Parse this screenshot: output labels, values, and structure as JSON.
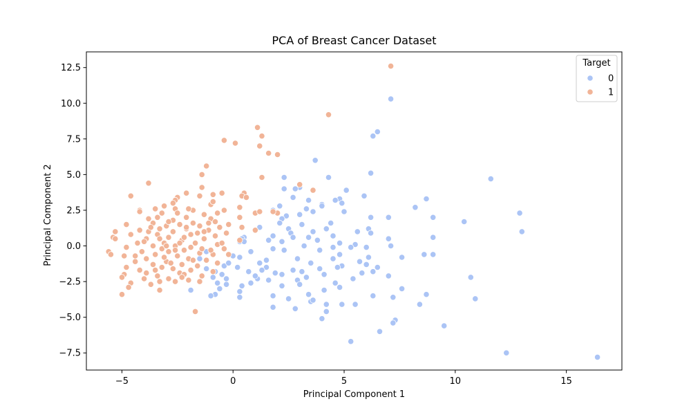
{
  "chart_data": {
    "type": "scatter",
    "title": "PCA of Breast Cancer Dataset",
    "xlabel": "Principal Component 1",
    "ylabel": "Principal Component 2",
    "xlim": [
      -6.6,
      17.5
    ],
    "ylim": [
      -8.7,
      13.6
    ],
    "xticks": [
      -5,
      0,
      5,
      10,
      15
    ],
    "xtick_labels": [
      "−5",
      "0",
      "5",
      "10",
      "15"
    ],
    "yticks": [
      -7.5,
      -5.0,
      -2.5,
      0.0,
      2.5,
      5.0,
      7.5,
      10.0,
      12.5
    ],
    "ytick_labels": [
      "−7.5",
      "−5.0",
      "−2.5",
      "0.0",
      "2.5",
      "5.0",
      "7.5",
      "10.0",
      "12.5"
    ],
    "grid": false,
    "legend": {
      "title": "Target",
      "placement": "top-right",
      "entries": [
        "0",
        "1"
      ]
    },
    "series": [
      {
        "name": "0",
        "color": "#abc4f5",
        "points": [
          [
            7.1,
            10.3
          ],
          [
            6.5,
            8.0
          ],
          [
            6.3,
            7.7
          ],
          [
            3.7,
            6.0
          ],
          [
            6.2,
            5.1
          ],
          [
            11.6,
            4.7
          ],
          [
            2.3,
            4.8
          ],
          [
            5.9,
            3.5
          ],
          [
            4.3,
            4.8
          ],
          [
            2.3,
            4.0
          ],
          [
            3.0,
            4.1
          ],
          [
            2.8,
            4.0
          ],
          [
            5.1,
            3.9
          ],
          [
            2.7,
            3.4
          ],
          [
            4.8,
            3.3
          ],
          [
            3.4,
            3.2
          ],
          [
            8.7,
            3.3
          ],
          [
            4.6,
            3.2
          ],
          [
            4.9,
            3.0
          ],
          [
            4.0,
            2.9
          ],
          [
            4.0,
            2.8
          ],
          [
            8.2,
            2.7
          ],
          [
            2.1,
            2.8
          ],
          [
            3.3,
            2.6
          ],
          [
            5.0,
            2.4
          ],
          [
            1.8,
            2.5
          ],
          [
            3.6,
            2.4
          ],
          [
            12.9,
            2.3
          ],
          [
            9.0,
            2.0
          ],
          [
            7.0,
            2.0
          ],
          [
            6.2,
            2.0
          ],
          [
            3.0,
            2.2
          ],
          [
            2.4,
            2.1
          ],
          [
            2.2,
            1.9
          ],
          [
            10.4,
            1.7
          ],
          [
            4.4,
            1.6
          ],
          [
            3.1,
            1.5
          ],
          [
            2.1,
            1.6
          ],
          [
            1.2,
            1.3
          ],
          [
            4.2,
            1.2
          ],
          [
            2.5,
            1.2
          ],
          [
            6.1,
            1.2
          ],
          [
            13.0,
            1.0
          ],
          [
            5.6,
            1.0
          ],
          [
            3.6,
            1.0
          ],
          [
            1.0,
            1.1
          ],
          [
            2.6,
            0.9
          ],
          [
            6.2,
            0.9
          ],
          [
            1.8,
            0.7
          ],
          [
            4.5,
            0.7
          ],
          [
            3.4,
            0.6
          ],
          [
            7.0,
            0.5
          ],
          [
            0.5,
            0.6
          ],
          [
            9.0,
            0.6
          ],
          [
            2.7,
            0.6
          ],
          [
            1.6,
            0.4
          ],
          [
            3.8,
            0.4
          ],
          [
            0.4,
            0.5
          ],
          [
            2.2,
            0.3
          ],
          [
            4.8,
            0.2
          ],
          [
            0.3,
            0.3
          ],
          [
            5.5,
            0.1
          ],
          [
            7.1,
            0.0
          ],
          [
            3.2,
            0.0
          ],
          [
            4.5,
            -0.1
          ],
          [
            1.8,
            -0.2
          ],
          [
            5.3,
            -0.1
          ],
          [
            6.0,
            -0.1
          ],
          [
            2.3,
            -0.3
          ],
          [
            3.9,
            -0.3
          ],
          [
            9.0,
            -0.6
          ],
          [
            8.6,
            -0.6
          ],
          [
            4.8,
            -0.6
          ],
          [
            7.6,
            -0.8
          ],
          [
            6.1,
            -0.8
          ],
          [
            0.3,
            -0.8
          ],
          [
            4.5,
            -0.9
          ],
          [
            2.9,
            -0.9
          ],
          [
            5.7,
            -1.1
          ],
          [
            1.5,
            -1.0
          ],
          [
            3.5,
            -1.2
          ],
          [
            1.2,
            -1.2
          ],
          [
            6.0,
            -1.3
          ],
          [
            4.9,
            -1.4
          ],
          [
            6.5,
            -1.5
          ],
          [
            4.7,
            -1.5
          ],
          [
            1.5,
            -1.5
          ],
          [
            0.2,
            -1.5
          ],
          [
            3.9,
            -1.6
          ],
          [
            1.3,
            -1.7
          ],
          [
            2.7,
            -1.7
          ],
          [
            6.3,
            -1.8
          ],
          [
            3.1,
            -1.8
          ],
          [
            0.7,
            -1.8
          ],
          [
            1.9,
            -1.9
          ],
          [
            5.8,
            -1.9
          ],
          [
            4.1,
            -2.0
          ],
          [
            2.2,
            -2.0
          ],
          [
            7.0,
            -2.1
          ],
          [
            3.3,
            -2.2
          ],
          [
            1.1,
            -2.3
          ],
          [
            5.4,
            -2.3
          ],
          [
            10.7,
            -2.2
          ],
          [
            2.9,
            -2.4
          ],
          [
            1.6,
            -2.4
          ],
          [
            4.6,
            -2.6
          ],
          [
            0.8,
            -2.6
          ],
          [
            3.0,
            -2.7
          ],
          [
            -0.3,
            -2.7
          ],
          [
            4.8,
            -2.9
          ],
          [
            0.4,
            -2.8
          ],
          [
            2.2,
            -2.8
          ],
          [
            7.6,
            -3.0
          ],
          [
            -1.9,
            -3.1
          ],
          [
            4.1,
            -3.1
          ],
          [
            0.3,
            -3.2
          ],
          [
            3.4,
            -3.4
          ],
          [
            8.7,
            -3.4
          ],
          [
            -0.8,
            -3.4
          ],
          [
            1.8,
            -3.5
          ],
          [
            7.2,
            -3.6
          ],
          [
            0.3,
            -3.6
          ],
          [
            2.5,
            -3.7
          ],
          [
            6.3,
            -3.5
          ],
          [
            10.9,
            -3.7
          ],
          [
            3.5,
            -3.9
          ],
          [
            4.9,
            -4.1
          ],
          [
            3.6,
            -3.8
          ],
          [
            8.4,
            -4.1
          ],
          [
            5.5,
            -4.1
          ],
          [
            4.2,
            -4.1
          ],
          [
            2.8,
            -4.4
          ],
          [
            1.8,
            -4.3
          ],
          [
            4.2,
            -4.6
          ],
          [
            4.0,
            -5.1
          ],
          [
            7.3,
            -5.2
          ],
          [
            7.2,
            -5.4
          ],
          [
            9.5,
            -5.6
          ],
          [
            6.6,
            -6.0
          ],
          [
            5.3,
            -6.7
          ],
          [
            12.3,
            -7.5
          ],
          [
            16.4,
            -7.8
          ],
          [
            -1.5,
            -0.9
          ],
          [
            -1.2,
            -1.6
          ],
          [
            -0.9,
            -2.2
          ],
          [
            -0.5,
            -2.0
          ],
          [
            -0.7,
            -2.6
          ],
          [
            -0.4,
            -1.4
          ],
          [
            -0.8,
            -1.8
          ],
          [
            0.0,
            -0.7
          ],
          [
            0.5,
            0.3
          ],
          [
            0.8,
            -0.4
          ],
          [
            1.0,
            -2.1
          ],
          [
            -0.2,
            -1.2
          ],
          [
            -1.0,
            -3.5
          ],
          [
            -0.6,
            -3.0
          ],
          [
            -0.3,
            -2.3
          ],
          [
            -1.2,
            -0.4
          ]
        ]
      },
      {
        "name": "1",
        "color": "#f1b497",
        "points": [
          [
            7.1,
            12.6
          ],
          [
            4.3,
            9.2
          ],
          [
            1.1,
            8.3
          ],
          [
            1.3,
            7.7
          ],
          [
            -0.4,
            7.4
          ],
          [
            0.1,
            7.2
          ],
          [
            1.2,
            7.0
          ],
          [
            1.6,
            6.5
          ],
          [
            2.0,
            6.4
          ],
          [
            -1.2,
            5.6
          ],
          [
            -1.4,
            5.0
          ],
          [
            1.3,
            4.8
          ],
          [
            0.5,
            3.7
          ],
          [
            -3.8,
            4.4
          ],
          [
            -1.4,
            4.1
          ],
          [
            -4.6,
            3.5
          ],
          [
            -0.9,
            3.6
          ],
          [
            -0.5,
            3.7
          ],
          [
            3.0,
            4.3
          ],
          [
            0.4,
            3.5
          ],
          [
            0.6,
            3.4
          ],
          [
            -1.5,
            3.5
          ],
          [
            -2.5,
            3.4
          ],
          [
            3.6,
            3.9
          ],
          [
            -2.1,
            3.7
          ],
          [
            -1.0,
            2.9
          ],
          [
            -2.6,
            3.2
          ],
          [
            -0.9,
            3.1
          ],
          [
            -2.7,
            3.0
          ],
          [
            -3.1,
            2.8
          ],
          [
            0.3,
            2.7
          ],
          [
            -0.4,
            2.5
          ],
          [
            -1.8,
            2.5
          ],
          [
            -2.6,
            2.6
          ],
          [
            -3.5,
            2.6
          ],
          [
            -4.2,
            2.5
          ],
          [
            1.0,
            2.3
          ],
          [
            -0.7,
            2.3
          ],
          [
            -3.2,
            2.3
          ],
          [
            -4.2,
            2.4
          ],
          [
            -1.3,
            2.2
          ],
          [
            -2.1,
            2.0
          ],
          [
            0.3,
            2.0
          ],
          [
            2.0,
            2.3
          ],
          [
            -3.8,
            1.9
          ],
          [
            -1.0,
            1.9
          ],
          [
            -2.7,
            1.8
          ],
          [
            -0.8,
            1.7
          ],
          [
            -3.6,
            1.6
          ],
          [
            -1.8,
            1.6
          ],
          [
            -2.4,
            1.5
          ],
          [
            -4.8,
            1.5
          ],
          [
            -3.0,
            1.4
          ],
          [
            -1.5,
            1.4
          ],
          [
            -0.6,
            1.3
          ],
          [
            1.0,
            1.1
          ],
          [
            -3.3,
            1.2
          ],
          [
            -2.1,
            1.2
          ],
          [
            -4.2,
            1.1
          ],
          [
            -1.1,
            1.1
          ],
          [
            -5.3,
            1.0
          ],
          [
            -3.8,
            1.0
          ],
          [
            -2.7,
            1.0
          ],
          [
            -0.3,
            0.9
          ],
          [
            -4.6,
            0.8
          ],
          [
            -3.4,
            0.8
          ],
          [
            -1.9,
            0.8
          ],
          [
            -0.8,
            0.7
          ],
          [
            -5.4,
            0.6
          ],
          [
            -2.9,
            0.6
          ],
          [
            -3.9,
            0.5
          ],
          [
            -1.3,
            0.5
          ],
          [
            -2.3,
            0.4
          ],
          [
            0.3,
            0.4
          ],
          [
            -4.3,
            0.2
          ],
          [
            -3.1,
            0.2
          ],
          [
            -1.7,
            0.2
          ],
          [
            -0.7,
            0.1
          ],
          [
            -3.6,
            0.0
          ],
          [
            -2.6,
            0.0
          ],
          [
            -4.8,
            -0.1
          ],
          [
            -1.9,
            -0.1
          ],
          [
            -0.4,
            -0.2
          ],
          [
            -3.2,
            -0.2
          ],
          [
            -2.2,
            -0.3
          ],
          [
            -5.6,
            -0.4
          ],
          [
            -4.1,
            -0.4
          ],
          [
            -2.9,
            -0.4
          ],
          [
            -1.5,
            -0.5
          ],
          [
            -0.9,
            -0.6
          ],
          [
            -3.5,
            -0.6
          ],
          [
            -4.9,
            -0.7
          ],
          [
            -2.5,
            -0.7
          ],
          [
            -5.5,
            -0.6
          ],
          [
            -3.9,
            -0.9
          ],
          [
            -2.0,
            -0.9
          ],
          [
            -1.2,
            -1.0
          ],
          [
            -4.4,
            -1.1
          ],
          [
            -3.0,
            -1.1
          ],
          [
            -0.7,
            -1.2
          ],
          [
            -3.6,
            -1.3
          ],
          [
            -2.3,
            -1.3
          ],
          [
            -4.8,
            -1.5
          ],
          [
            -1.6,
            -1.4
          ],
          [
            -3.2,
            -1.5
          ],
          [
            -2.7,
            -1.6
          ],
          [
            -4.2,
            -1.7
          ],
          [
            -1.9,
            -1.7
          ],
          [
            -0.9,
            -1.8
          ],
          [
            -3.9,
            -1.9
          ],
          [
            -2.4,
            -1.9
          ],
          [
            -4.9,
            -2.0
          ],
          [
            -3.4,
            -2.1
          ],
          [
            -1.4,
            -2.1
          ],
          [
            -2.9,
            -2.3
          ],
          [
            -5.0,
            -2.2
          ],
          [
            -4.0,
            -2.3
          ],
          [
            -2.0,
            -2.4
          ],
          [
            -3.3,
            -2.5
          ],
          [
            -4.6,
            -2.6
          ],
          [
            -2.6,
            -2.5
          ],
          [
            -3.7,
            -2.7
          ],
          [
            -4.7,
            -2.9
          ],
          [
            -3.3,
            -3.1
          ],
          [
            -5.0,
            -3.4
          ],
          [
            -1.7,
            -4.6
          ],
          [
            -2.2,
            -2.0
          ],
          [
            -2.8,
            -1.2
          ],
          [
            -3.1,
            -0.8
          ],
          [
            -1.4,
            -0.2
          ],
          [
            -2.4,
            0.2
          ],
          [
            -3.3,
            0.5
          ],
          [
            -1.6,
            0.9
          ],
          [
            -2.1,
            1.3
          ],
          [
            -2.9,
            1.7
          ],
          [
            -1.1,
            1.6
          ],
          [
            -2.5,
            2.3
          ],
          [
            -3.0,
            0.0
          ],
          [
            -2.6,
            -0.3
          ],
          [
            -1.8,
            -1.0
          ],
          [
            -3.5,
            -1.7
          ],
          [
            -2.3,
            -2.2
          ],
          [
            -1.5,
            -2.5
          ],
          [
            -4.4,
            -0.7
          ],
          [
            -4.0,
            0.3
          ],
          [
            -3.7,
            1.3
          ],
          [
            -2.2,
            0.6
          ],
          [
            -1.3,
            1.0
          ],
          [
            -0.5,
            0.2
          ],
          [
            -0.2,
            -0.6
          ],
          [
            -1.0,
            -0.3
          ],
          [
            -3.4,
            2.0
          ],
          [
            -2.0,
            2.6
          ],
          [
            -0.2,
            1.5
          ],
          [
            0.4,
            1.3
          ],
          [
            1.2,
            2.4
          ],
          [
            1.8,
            2.4
          ],
          [
            -5.3,
            0.5
          ]
        ]
      }
    ]
  }
}
